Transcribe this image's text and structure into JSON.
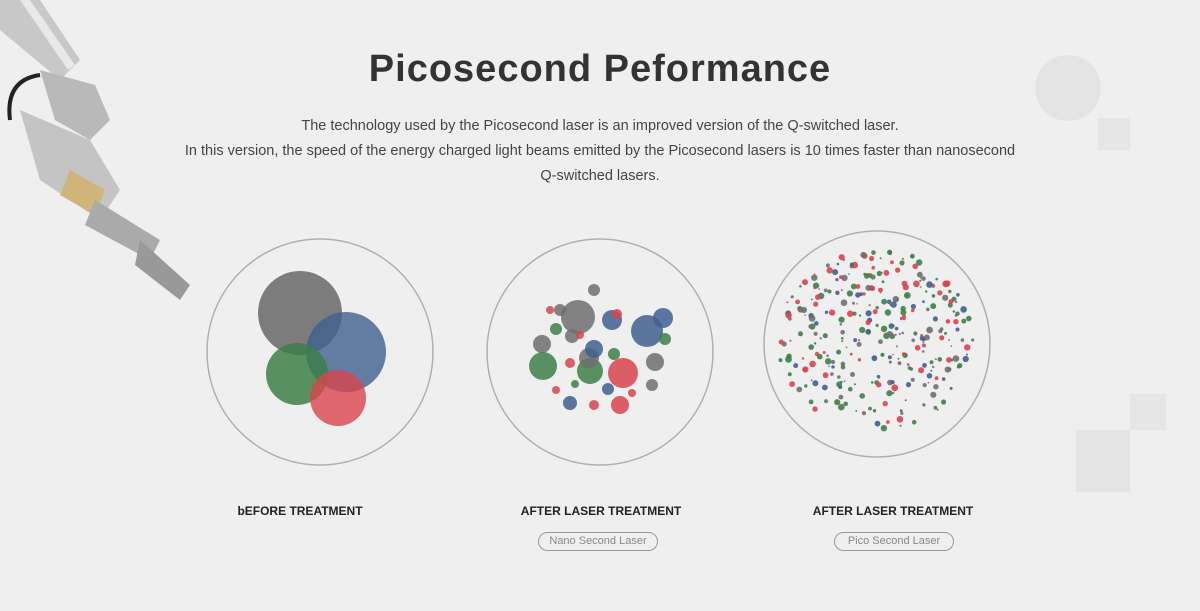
{
  "title": "Picosecond Peformance",
  "description": [
    "The technology used by the Picosecond laser is an improved version of the Q-switched laser.",
    "In this version, the speed of the energy charged light beams emitted by the Picosecond lasers is 10 times faster than nanosecond",
    "Q-switched lasers."
  ],
  "panels": [
    {
      "label": "bEFORE TREATMENT"
    },
    {
      "label": "AFTER LASER TREATMENT",
      "tag": "Nano Second Laser"
    },
    {
      "label": "AFTER LASER TREATMENT",
      "tag": "Pico Second Laser"
    }
  ],
  "colors": {
    "gray": "#6f6f6f",
    "blue": "#3f5f8f",
    "green": "#3d7f48",
    "red": "#d9434c",
    "ring": "#a7b3b3"
  }
}
